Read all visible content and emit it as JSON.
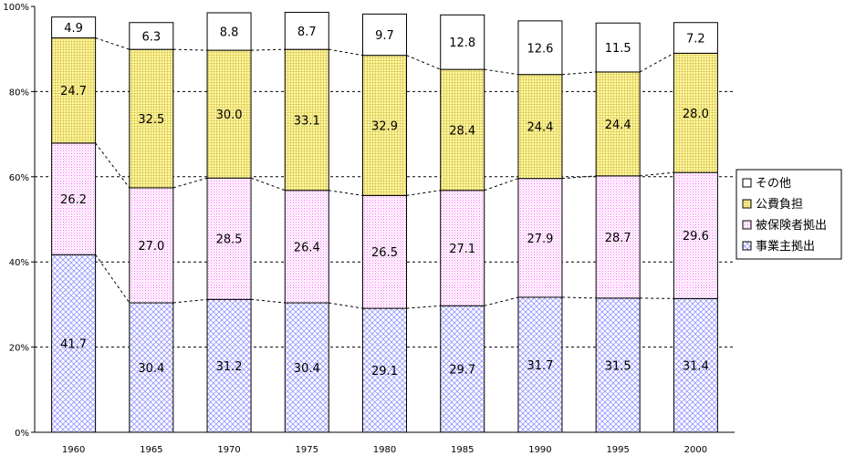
{
  "chart_data": {
    "type": "bar",
    "stacked": true,
    "categories": [
      "1960",
      "1965",
      "1970",
      "1975",
      "1980",
      "1985",
      "1990",
      "1995",
      "2000"
    ],
    "ylim": [
      0,
      100
    ],
    "yticks": [
      "0%",
      "20%",
      "40%",
      "60%",
      "80%",
      "100%"
    ],
    "grid": "horizontal dashed",
    "legend_position": "right",
    "series": [
      {
        "name": "事業主拠出",
        "values": [
          41.7,
          30.4,
          31.2,
          30.4,
          29.1,
          29.7,
          31.7,
          31.5,
          31.4
        ],
        "color": "#9999ff",
        "pattern": "diagonal-crosshatch"
      },
      {
        "name": "被保険者拠出",
        "values": [
          26.2,
          27.0,
          28.5,
          26.4,
          26.5,
          27.1,
          27.9,
          28.7,
          29.6
        ],
        "color": "#ff66ff",
        "pattern": "dotted"
      },
      {
        "name": "公費負担",
        "values": [
          24.7,
          32.5,
          30.0,
          33.1,
          32.9,
          28.4,
          24.4,
          24.4,
          28.0
        ],
        "color": "#ffff66",
        "pattern": "grid"
      },
      {
        "name": "その他",
        "values": [
          4.9,
          6.3,
          8.8,
          8.7,
          9.7,
          12.8,
          12.6,
          11.5,
          7.2
        ],
        "color": "#ffffff",
        "pattern": "none"
      }
    ],
    "value_labels": [
      [
        "41.7",
        "30.4",
        "31.2",
        "30.4",
        "29.1",
        "29.7",
        "31.7",
        "31.5",
        "31.4"
      ],
      [
        "26.2",
        "27.0",
        "28.5",
        "26.4",
        "26.5",
        "27.1",
        "27.9",
        "28.7",
        "29.6"
      ],
      [
        "24.7",
        "32.5",
        "30.0",
        "33.1",
        "32.9",
        "28.4",
        "24.4",
        "24.4",
        "28.0"
      ],
      [
        "4.9",
        "6.3",
        "8.8",
        "8.7",
        "9.7",
        "12.8",
        "12.6",
        "11.5",
        "7.2"
      ]
    ],
    "legend_order": [
      "その他",
      "公費負担",
      "被保険者拠出",
      "事業主拠出"
    ]
  }
}
